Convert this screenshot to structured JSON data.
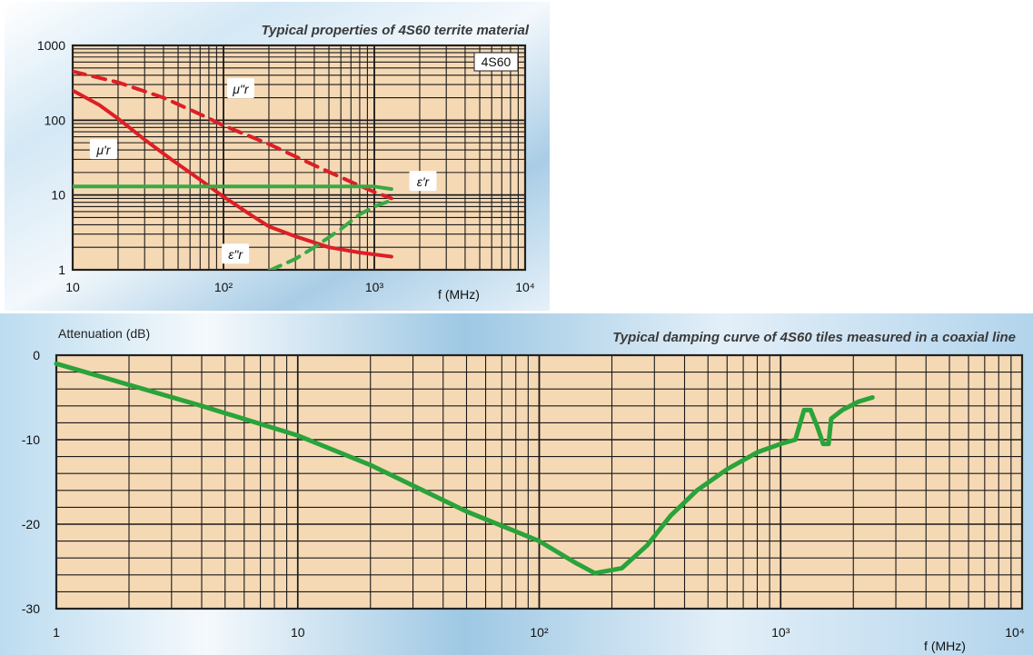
{
  "colors": {
    "plot_background": "#f5d9b5",
    "grid_line": "#1a1a1a",
    "mu_curves": "#dd1f26",
    "eps_curves": "#3aa845",
    "attenuation_curve": "#2aa33a",
    "sky_light": "#d4e8f5",
    "sky_mid": "#a9cde6"
  },
  "chart_data": [
    {
      "type": "line",
      "title": "Typical properties of 4S60 territe material",
      "badge": "4S60",
      "xlabel": "f  (MHz)",
      "ylabel": "",
      "x_scale": "log",
      "y_scale": "log",
      "xlim": [
        10,
        10000
      ],
      "ylim": [
        1,
        1000
      ],
      "grid": true,
      "legend": "inline curve labels",
      "x_ticks": [
        {
          "value": 10,
          "label": "10"
        },
        {
          "value": 100,
          "label": "10²"
        },
        {
          "value": 1000,
          "label": "10³"
        },
        {
          "value": 10000,
          "label": "10⁴"
        }
      ],
      "y_ticks": [
        {
          "value": 1000,
          "label": "1000"
        },
        {
          "value": 100,
          "label": "100"
        },
        {
          "value": 10,
          "label": "10"
        },
        {
          "value": 1,
          "label": "1"
        }
      ],
      "series": [
        {
          "name": "μ\"r",
          "color": "#dd1f26",
          "dash": true,
          "points": [
            [
              10,
              450
            ],
            [
              20,
              320
            ],
            [
              40,
              200
            ],
            [
              70,
              120
            ],
            [
              100,
              85
            ],
            [
              200,
              48
            ],
            [
              400,
              25
            ],
            [
              700,
              15
            ],
            [
              1000,
              11
            ],
            [
              1300,
              9
            ]
          ]
        },
        {
          "name": "μ'r",
          "color": "#dd1f26",
          "dash": false,
          "points": [
            [
              10,
              250
            ],
            [
              15,
              160
            ],
            [
              20,
              105
            ],
            [
              30,
              55
            ],
            [
              45,
              30
            ],
            [
              70,
              16
            ],
            [
              100,
              9.5
            ],
            [
              150,
              5.5
            ],
            [
              200,
              3.8
            ],
            [
              300,
              2.8
            ],
            [
              500,
              2.0
            ],
            [
              800,
              1.7
            ],
            [
              1300,
              1.5
            ]
          ]
        },
        {
          "name": "ε'r",
          "color": "#3aa845",
          "dash": false,
          "points": [
            [
              10,
              13
            ],
            [
              100,
              13
            ],
            [
              500,
              13
            ],
            [
              1000,
              13
            ],
            [
              1300,
              12
            ]
          ]
        },
        {
          "name": "ε\"r",
          "color": "#3aa845",
          "dash": true,
          "points": [
            [
              200,
              0.97
            ],
            [
              300,
              1.4
            ],
            [
              400,
              2.0
            ],
            [
              600,
              3.5
            ],
            [
              800,
              5.5
            ],
            [
              1000,
              7.0
            ],
            [
              1300,
              8.5
            ]
          ]
        }
      ],
      "annotations": [
        {
          "text": "μ\"r",
          "x": 130,
          "y": 260
        },
        {
          "text": "μ'r",
          "x": 16,
          "y": 40
        },
        {
          "text": "ε'r",
          "x": 2100,
          "y": 15
        },
        {
          "text": "ε\"r",
          "x": 120,
          "y": 1.6
        }
      ]
    },
    {
      "type": "line",
      "title": "Typical damping curve of 4S60 tiles measured in a coaxial line",
      "xlabel": "f (MHz)",
      "ylabel": "Attenuation (dB)",
      "x_scale": "log",
      "xlim": [
        1,
        10000
      ],
      "ylim": [
        -30,
        0
      ],
      "grid": true,
      "legend": "none",
      "x_ticks": [
        {
          "value": 1,
          "label": "1"
        },
        {
          "value": 10,
          "label": "10"
        },
        {
          "value": 100,
          "label": "10²"
        },
        {
          "value": 1000,
          "label": "10³"
        },
        {
          "value": 10000,
          "label": "10⁴"
        }
      ],
      "y_ticks": [
        {
          "value": 0,
          "label": "0"
        },
        {
          "value": -10,
          "label": "-10"
        },
        {
          "value": -20,
          "label": "-20"
        },
        {
          "value": -30,
          "label": "-30"
        }
      ],
      "series": [
        {
          "name": "Attenuation",
          "color": "#2aa33a",
          "points": [
            [
              1,
              -1
            ],
            [
              2,
              -3.5
            ],
            [
              4,
              -6
            ],
            [
              10,
              -9.5
            ],
            [
              20,
              -13
            ],
            [
              50,
              -18.5
            ],
            [
              100,
              -22
            ],
            [
              140,
              -24.5
            ],
            [
              170,
              -25.8
            ],
            [
              220,
              -25.2
            ],
            [
              280,
              -22.5
            ],
            [
              350,
              -19
            ],
            [
              450,
              -16
            ],
            [
              600,
              -13.5
            ],
            [
              800,
              -11.5
            ],
            [
              1000,
              -10.5
            ],
            [
              1150,
              -10
            ],
            [
              1250,
              -6.5
            ],
            [
              1330,
              -6.5
            ],
            [
              1420,
              -8.5
            ],
            [
              1500,
              -10.5
            ],
            [
              1580,
              -10.5
            ],
            [
              1620,
              -7.5
            ],
            [
              1800,
              -6.5
            ],
            [
              2100,
              -5.5
            ],
            [
              2400,
              -5
            ]
          ]
        }
      ]
    }
  ]
}
